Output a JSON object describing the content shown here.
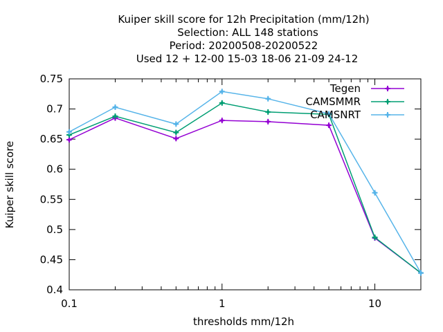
{
  "chart_data": {
    "type": "line",
    "title_lines": [
      "Kuiper skill score  for 12h Precipitation (mm/12h)",
      "Selection: ALL    148 stations",
      "Period: 20200508-20200522",
      "Used  12 + 12-00 15-03 18-06 21-09 24-12"
    ],
    "xlabel": "thresholds mm/12h",
    "ylabel": "Kuiper skill score",
    "xscale": "log",
    "xlim": [
      0.1,
      20
    ],
    "ylim": [
      0.4,
      0.75
    ],
    "xticks": [
      {
        "value": 0.1,
        "label": "0.1"
      },
      {
        "value": 1,
        "label": "1"
      },
      {
        "value": 10,
        "label": "10"
      }
    ],
    "yticks": [
      {
        "value": 0.4,
        "label": "0.4"
      },
      {
        "value": 0.45,
        "label": "0.45"
      },
      {
        "value": 0.5,
        "label": "0.5"
      },
      {
        "value": 0.55,
        "label": "0.55"
      },
      {
        "value": 0.6,
        "label": "0.6"
      },
      {
        "value": 0.65,
        "label": "0.65"
      },
      {
        "value": 0.7,
        "label": "0.7"
      },
      {
        "value": 0.75,
        "label": "0.75"
      }
    ],
    "grid": false,
    "legend_position": "top-right",
    "x": [
      0.1,
      0.2,
      0.5,
      1,
      2,
      5,
      10,
      20
    ],
    "series": [
      {
        "name": "Tegen",
        "color": "#9400d3",
        "marker": "plus",
        "values": [
          0.649,
          0.685,
          0.651,
          0.681,
          0.679,
          0.673,
          0.486,
          0.428
        ]
      },
      {
        "name": "CAMSMMR",
        "color": "#009e73",
        "marker": "plus",
        "values": [
          0.657,
          0.688,
          0.661,
          0.71,
          0.695,
          0.691,
          0.487,
          0.428
        ]
      },
      {
        "name": "CAMSNRT",
        "color": "#56b4e9",
        "marker": "plus",
        "values": [
          0.662,
          0.703,
          0.675,
          0.729,
          0.717,
          0.692,
          0.561,
          0.428
        ]
      }
    ]
  }
}
